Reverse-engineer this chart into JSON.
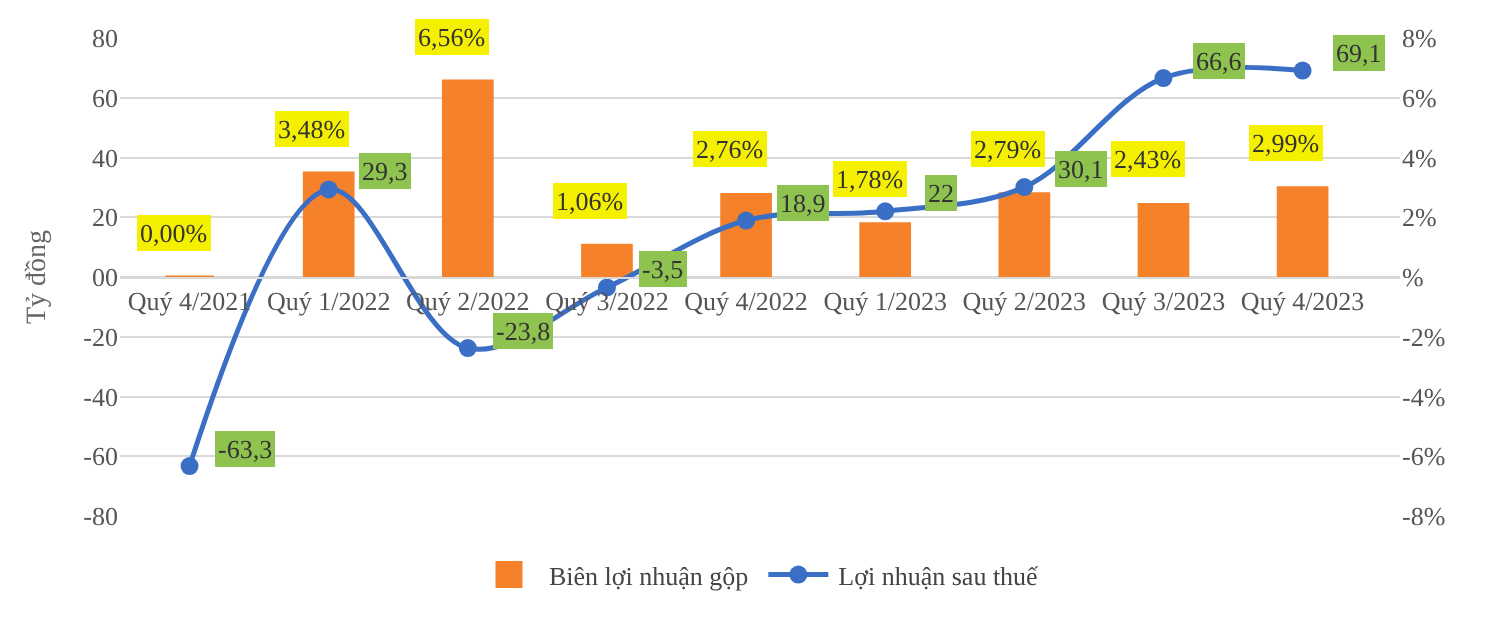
{
  "chart_data": {
    "type": "bar",
    "ylabel": "Tỷ đồng",
    "categories": [
      "Quý 4/2021",
      "Quý 1/2022",
      "Quý 2/2022",
      "Quý 3/2022",
      "Quý 4/2022",
      "Quý 1/2023",
      "Quý 2/2023",
      "Quý 3/2023",
      "Quý 4/2023"
    ],
    "series": [
      {
        "name": "Biên lợi nhuận gộp",
        "axis": "y2",
        "color": "#f5822a",
        "values": [
          0,
          3.48,
          6.56,
          1.06,
          2.76,
          1.78,
          2.79,
          2.43,
          2.99
        ],
        "value_labels": [
          "0,00%",
          "3,48%",
          "6,56%",
          "1,06%",
          "2,76%",
          "1,78%",
          "2,79%",
          "2,43%",
          "2,99%"
        ]
      },
      {
        "name": "Lợi nhuận sau thuế",
        "type": "line",
        "color": "#3b6fc6",
        "values": [
          -63.3,
          29.3,
          -23.8,
          -3.5,
          18.9,
          22,
          30.1,
          66.6,
          69.1
        ],
        "value_labels": [
          "-63,3",
          "29,3",
          "-23,8",
          "-3,5",
          "18,9",
          "22",
          "30,1",
          "66,6",
          "69,1"
        ]
      }
    ],
    "ylim": [
      -80,
      80
    ],
    "yticks": [
      -80,
      -60,
      -40,
      -20,
      {
        "value": 0,
        "label": "00"
      },
      20,
      40,
      60,
      80
    ],
    "y2lim": [
      -8,
      8
    ],
    "y2ticks": [
      {
        "value": -8,
        "label": "-8%"
      },
      {
        "value": -6,
        "label": "-6%"
      },
      {
        "value": -4,
        "label": "-4%"
      },
      {
        "value": -2,
        "label": "-2%"
      },
      {
        "value": 0,
        "label": "%"
      },
      {
        "value": 2,
        "label": "2%"
      },
      {
        "value": 4,
        "label": "4%"
      },
      {
        "value": 6,
        "label": "6%"
      },
      {
        "value": 8,
        "label": "8%"
      }
    ],
    "grid": "y",
    "legend": "bottom",
    "marker": "circle"
  }
}
